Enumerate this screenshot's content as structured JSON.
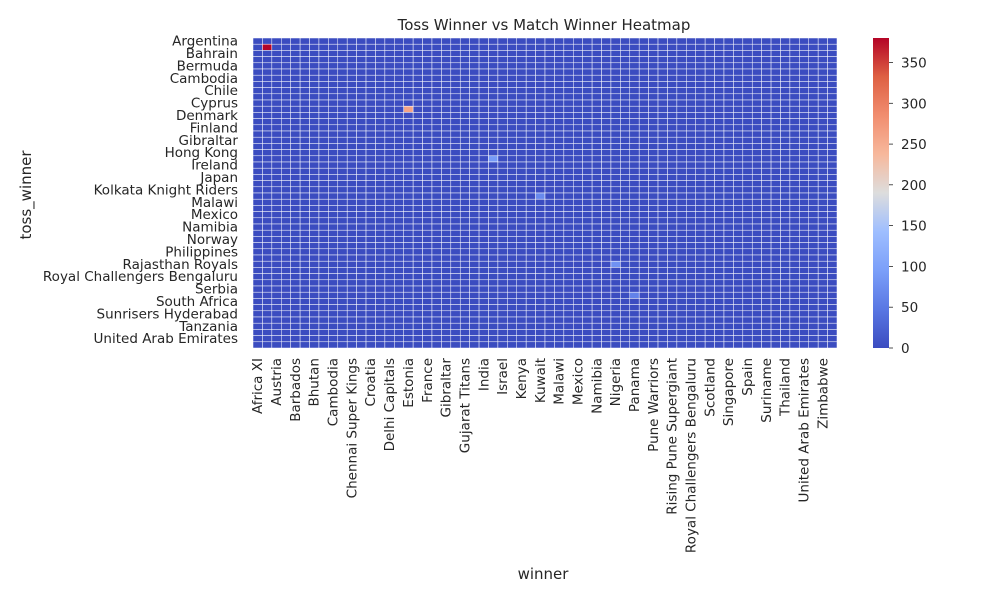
{
  "chart_data": {
    "type": "heatmap",
    "title": "Toss Winner vs Match Winner Heatmap",
    "xlabel": "winner",
    "ylabel": "toss_winner",
    "x_tick_labels": [
      "Africa XI",
      "Austria",
      "Barbados",
      "Bhutan",
      "Cambodia",
      "Chennai Super Kings",
      "Croatia",
      "Delhi Capitals",
      "Estonia",
      "France",
      "Gibraltar",
      "Gujarat Titans",
      "India",
      "Israel",
      "Kenya",
      "Kuwait",
      "Malawi",
      "Mexico",
      "Namibia",
      "Nigeria",
      "Panama",
      "Pune Warriors",
      "Rising Pune Supergiant",
      "Royal Challengers Bengaluru",
      "Scotland",
      "Singapore",
      "Spain",
      "Suriname",
      "Thailand",
      "United Arab Emirates",
      "Zimbabwe"
    ],
    "y_tick_labels": [
      "Argentina",
      "Bahrain",
      "Bermuda",
      "Cambodia",
      "Chile",
      "Cyprus",
      "Denmark",
      "Finland",
      "Gibraltar",
      "Hong Kong",
      "Ireland",
      "Japan",
      "Kolkata Knight Riders",
      "Malawi",
      "Mexico",
      "Namibia",
      "Norway",
      "Philippines",
      "Rajasthan Royals",
      "Royal Challengers Bengaluru",
      "Serbia",
      "South Africa",
      "Sunrisers Hyderabad",
      "Tanzania",
      "United Arab Emirates"
    ],
    "n_rows": 50,
    "n_cols": 62,
    "vmin": 0,
    "vmax": 380,
    "colormap": "coolwarm",
    "grid_line_color": "#ffffff",
    "colorbar": {
      "position": "right",
      "ticks": [
        0,
        50,
        100,
        150,
        200,
        250,
        300,
        350
      ]
    },
    "notable_cells": [
      {
        "row": 1,
        "col": 1,
        "value": 380
      },
      {
        "row": 11,
        "col": 16,
        "value": 260
      },
      {
        "row": 19,
        "col": 25,
        "value": 90
      },
      {
        "row": 25,
        "col": 30,
        "value": 70
      },
      {
        "row": 36,
        "col": 38,
        "value": 80
      },
      {
        "row": 41,
        "col": 40,
        "value": 60
      },
      {
        "row": 51,
        "col": 44,
        "value": 80
      },
      {
        "row": 60,
        "col": 47,
        "value": 120
      }
    ]
  }
}
